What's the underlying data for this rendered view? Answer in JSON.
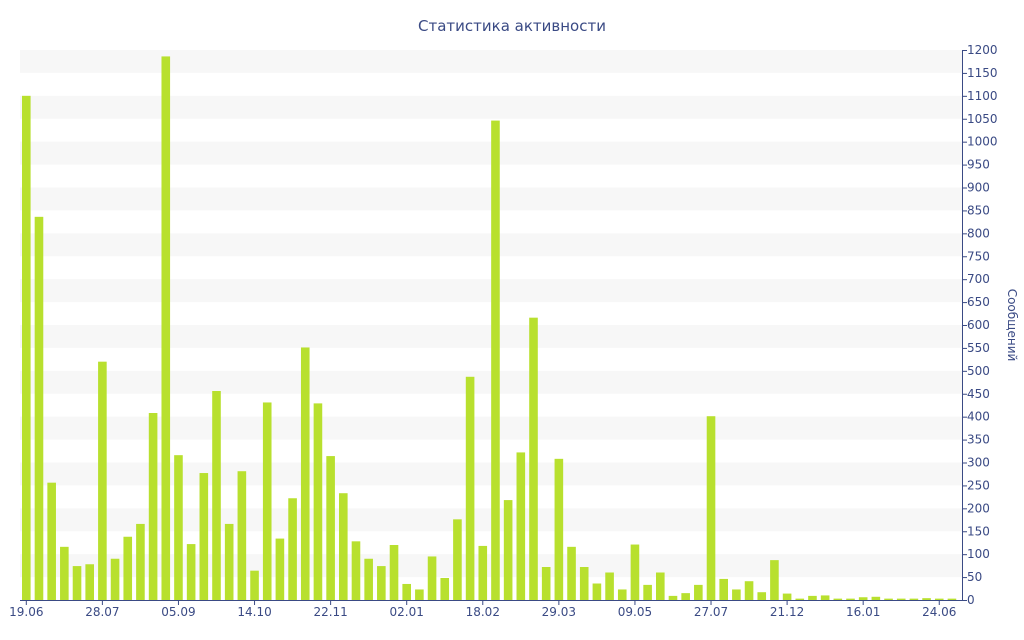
{
  "chart_data": {
    "type": "bar",
    "title": "Статистика активности",
    "xlabel": "",
    "ylabel": "Сообщений",
    "y_axis_side": "right",
    "ylim": [
      0,
      1200
    ],
    "y_ticks": [
      0,
      50,
      100,
      150,
      200,
      250,
      300,
      350,
      400,
      450,
      500,
      550,
      600,
      650,
      700,
      750,
      800,
      850,
      900,
      950,
      1000,
      1050,
      1100,
      1150,
      1200
    ],
    "x_tick_labels": [
      {
        "index": 0,
        "label": "19.06"
      },
      {
        "index": 6,
        "label": "28.07"
      },
      {
        "index": 12,
        "label": "05.09"
      },
      {
        "index": 18,
        "label": "14.10"
      },
      {
        "index": 24,
        "label": "22.11"
      },
      {
        "index": 30,
        "label": "02.01"
      },
      {
        "index": 36,
        "label": "18.02"
      },
      {
        "index": 42,
        "label": "29.03"
      },
      {
        "index": 48,
        "label": "09.05"
      },
      {
        "index": 54,
        "label": "27.07"
      },
      {
        "index": 60,
        "label": "21.12"
      },
      {
        "index": 66,
        "label": "16.01"
      },
      {
        "index": 72,
        "label": "24.06"
      }
    ],
    "grid": "horizontal bands",
    "bar_color": "#b8e02e",
    "values": [
      1100,
      836,
      256,
      116,
      74,
      78,
      520,
      90,
      138,
      166,
      408,
      1186,
      316,
      122,
      277,
      456,
      166,
      281,
      64,
      431,
      134,
      222,
      551,
      429,
      314,
      233,
      128,
      90,
      74,
      120,
      35,
      23,
      95,
      48,
      176,
      487,
      118,
      1046,
      218,
      322,
      616,
      72,
      308,
      116,
      72,
      36,
      60,
      23,
      121,
      33,
      60,
      9,
      15,
      33,
      401,
      46,
      23,
      41,
      17,
      87,
      14,
      3,
      9,
      10,
      3,
      3,
      6,
      7,
      3,
      3,
      3,
      4,
      3,
      3
    ]
  }
}
